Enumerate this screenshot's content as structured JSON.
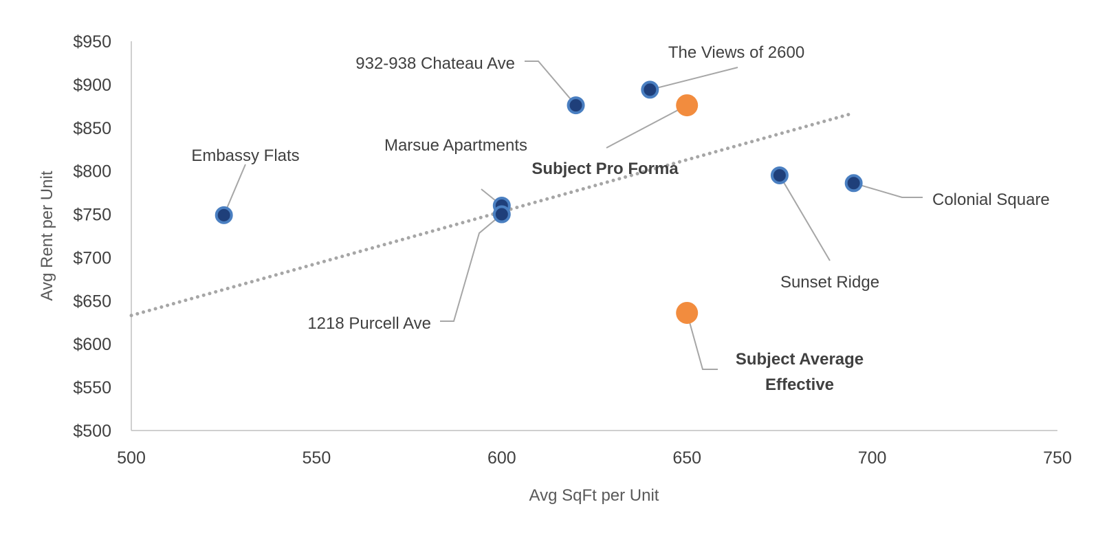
{
  "chart_data": {
    "type": "scatter",
    "xlabel": "Avg SqFt per Unit",
    "ylabel": "Avg Rent per Unit",
    "xlim": [
      500,
      750
    ],
    "ylim": [
      500,
      950
    ],
    "x_ticks": [
      "500",
      "550",
      "600",
      "650",
      "700",
      "750"
    ],
    "y_ticks": [
      "$500",
      "$550",
      "$600",
      "$650",
      "$700",
      "$750",
      "$800",
      "$850",
      "$900",
      "$950"
    ],
    "grid": false,
    "legend": "none",
    "trendline": {
      "type": "linear",
      "style": "dotted",
      "color": "#a6a6a6",
      "from": [
        500,
        633
      ],
      "to": [
        695,
        867
      ]
    },
    "series": [
      {
        "points": [
          {
            "label": "Embassy Flats",
            "x": 525,
            "y": 749
          },
          {
            "label": "Marsue Apartments",
            "x": 600,
            "y": 760
          },
          {
            "label": "1218 Purcell Ave",
            "x": 600,
            "y": 750
          },
          {
            "label": "932-938 Chateau Ave",
            "x": 620,
            "y": 876
          },
          {
            "label": "The Views of 2600",
            "x": 640,
            "y": 894
          },
          {
            "label": "Sunset Ridge",
            "x": 675,
            "y": 795
          },
          {
            "label": "Colonial Square",
            "x": 695,
            "y": 786
          }
        ],
        "color": "#1f3f7a",
        "ring_color": "#4a7fc1"
      },
      {
        "points": [
          {
            "label": "Subject Pro Forma",
            "x": 650,
            "y": 876
          },
          {
            "label": "Subject Average Effective",
            "x": 650,
            "y": 636
          }
        ],
        "color": "#f28c3e"
      }
    ]
  }
}
